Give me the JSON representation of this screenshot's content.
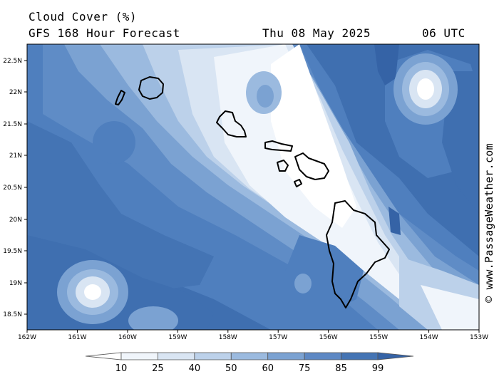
{
  "header": {
    "title": "Cloud Cover (%)",
    "subtitle": "GFS 168 Hour Forecast",
    "date": "Thu 08 May 2025",
    "time": "06 UTC"
  },
  "credit": "© www.PassageWeather.com",
  "axes": {
    "lat_labels": [
      "22.5N",
      "22N",
      "21.5N",
      "21N",
      "20.5N",
      "20N",
      "19.5N",
      "19N",
      "18.5N"
    ],
    "lon_labels": [
      "162W",
      "161W",
      "160W",
      "159W",
      "158W",
      "157W",
      "156W",
      "155W",
      "154W",
      "153W"
    ]
  },
  "colorbar": {
    "labels": [
      "10",
      "25",
      "40",
      "50",
      "60",
      "75",
      "85",
      "99"
    ],
    "colors": [
      "#ffffff",
      "#f0f5fb",
      "#d9e5f3",
      "#bcd1ea",
      "#9bbadf",
      "#7ba2d2",
      "#5d88c4",
      "#4474b4",
      "#3563a6"
    ]
  },
  "islands": [
    "Niihau",
    "Kauai",
    "Oahu",
    "Molokai",
    "Lanai",
    "Maui",
    "Kahoolawe",
    "Hawaii"
  ]
}
